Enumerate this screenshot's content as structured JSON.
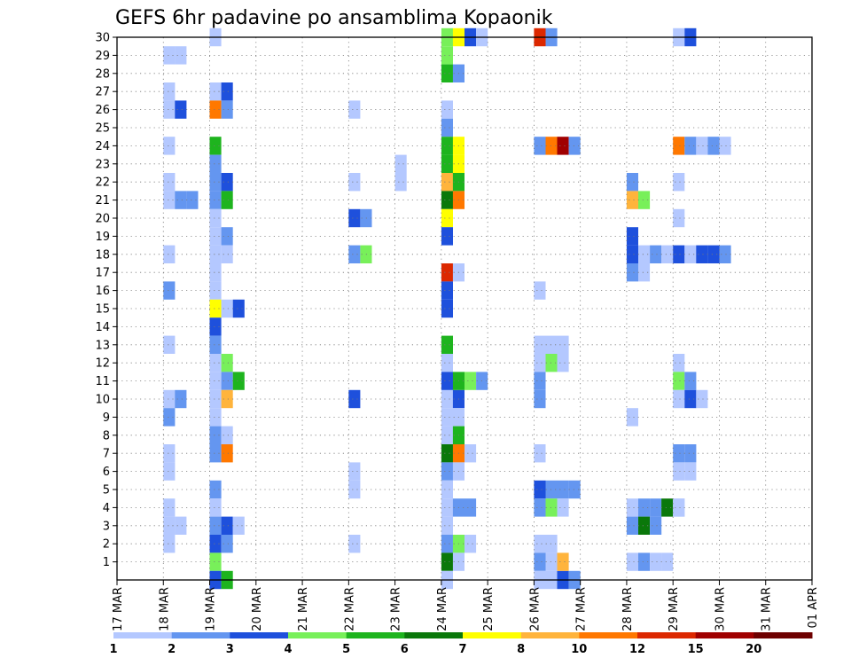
{
  "chart_data": {
    "type": "heatmap",
    "title": "GEFS 6hr padavine po ansamblima Kopaonik",
    "xlabel": "",
    "ylabel": "",
    "x_ticks": [
      "17 MAR",
      "18 MAR",
      "19 MAR",
      "20 MAR",
      "21 MAR",
      "22 MAR",
      "23 MAR",
      "24 MAR",
      "25 MAR",
      "26 MAR",
      "27 MAR",
      "28 MAR",
      "29 MAR",
      "30 MAR",
      "31 MAR",
      "01 APR"
    ],
    "y_ticks": [
      1,
      2,
      3,
      4,
      5,
      6,
      7,
      8,
      9,
      10,
      11,
      12,
      13,
      14,
      15,
      16,
      17,
      18,
      19,
      20,
      21,
      22,
      23,
      24,
      25,
      26,
      27,
      28,
      29,
      30
    ],
    "ylim": [
      0,
      30
    ],
    "grid": "dotted",
    "time_step_hours": 6,
    "levels": [
      1,
      2,
      3,
      4,
      5,
      6,
      7,
      8,
      10,
      12,
      15,
      20
    ],
    "colors": [
      "#b4c8ff",
      "#6496f0",
      "#1e50dc",
      "#78f05a",
      "#1eb41e",
      "#0a780a",
      "#ffff00",
      "#ffb43c",
      "#ff7800",
      "#dc2800",
      "#a00000",
      "#6e0000"
    ],
    "colorbar_labels": [
      "1",
      "2",
      "3",
      "4",
      "5",
      "6",
      "7",
      "8",
      "10",
      "12",
      "15",
      "20"
    ],
    "cells": [
      [
        1,
        29,
        1
      ],
      [
        1,
        29,
        1
      ],
      [
        1,
        27,
        1
      ],
      [
        1,
        26,
        1
      ],
      [
        1,
        26,
        3
      ],
      [
        1,
        24,
        1
      ],
      [
        1,
        22,
        1
      ],
      [
        1,
        21,
        1
      ],
      [
        1,
        21,
        2
      ],
      [
        1,
        21,
        2
      ],
      [
        1,
        18,
        1
      ],
      [
        1,
        16,
        2
      ],
      [
        1,
        13,
        1
      ],
      [
        1,
        10,
        1
      ],
      [
        1,
        10,
        2
      ],
      [
        1,
        9,
        2
      ],
      [
        1,
        7,
        1
      ],
      [
        1,
        6,
        1
      ],
      [
        1,
        4,
        1
      ],
      [
        1,
        3,
        1
      ],
      [
        1,
        3,
        1
      ],
      [
        1,
        2,
        1
      ],
      [
        2,
        30,
        1
      ],
      [
        2,
        27,
        1
      ],
      [
        2,
        27,
        3
      ],
      [
        2,
        26,
        9
      ],
      [
        2,
        26,
        2
      ],
      [
        2,
        24,
        5
      ],
      [
        2,
        23,
        2
      ],
      [
        2,
        22,
        2
      ],
      [
        2,
        22,
        3
      ],
      [
        2,
        21,
        2
      ],
      [
        2,
        21,
        5
      ],
      [
        2,
        20,
        1
      ],
      [
        2,
        19,
        1
      ],
      [
        2,
        19,
        2
      ],
      [
        2,
        18,
        1
      ],
      [
        2,
        18,
        1
      ],
      [
        2,
        17,
        1
      ],
      [
        2,
        16,
        1
      ],
      [
        2,
        15,
        7
      ],
      [
        2,
        15,
        1
      ],
      [
        2,
        15,
        3
      ],
      [
        2,
        14,
        3
      ],
      [
        2,
        13,
        2
      ],
      [
        2,
        12,
        1
      ],
      [
        2,
        12,
        4
      ],
      [
        2,
        11,
        1
      ],
      [
        2,
        11,
        2
      ],
      [
        2,
        11,
        5
      ],
      [
        2,
        10,
        1
      ],
      [
        2,
        10,
        8
      ],
      [
        2,
        9,
        1
      ],
      [
        2,
        8,
        2
      ],
      [
        2,
        8,
        1
      ],
      [
        2,
        7,
        2
      ],
      [
        2,
        7,
        9
      ],
      [
        2,
        5,
        2
      ],
      [
        2,
        4,
        1
      ],
      [
        2,
        3,
        2
      ],
      [
        2,
        3,
        3
      ],
      [
        2,
        3,
        1
      ],
      [
        2,
        2,
        3
      ],
      [
        2,
        2,
        2
      ],
      [
        2,
        1,
        4
      ],
      [
        2,
        0,
        3
      ],
      [
        2,
        0,
        5
      ],
      [
        5,
        26,
        1
      ],
      [
        5,
        22,
        1
      ],
      [
        5,
        20,
        3
      ],
      [
        5,
        20,
        2
      ],
      [
        5,
        18,
        2
      ],
      [
        5,
        18,
        4
      ],
      [
        5,
        10,
        3
      ],
      [
        5,
        6,
        1
      ],
      [
        5,
        5,
        1
      ],
      [
        5,
        2,
        1
      ],
      [
        6,
        23,
        1
      ],
      [
        6,
        22,
        1
      ],
      [
        7,
        29,
        4
      ],
      [
        7,
        28,
        5
      ],
      [
        7,
        28,
        2
      ],
      [
        7,
        23,
        5
      ],
      [
        7,
        23,
        7
      ],
      [
        7,
        17,
        10
      ],
      [
        7,
        17,
        1
      ],
      [
        7,
        16,
        3
      ],
      [
        7,
        15,
        3
      ],
      [
        7,
        10,
        1
      ],
      [
        7,
        10,
        3
      ],
      [
        7,
        9,
        1
      ],
      [
        7,
        9,
        1
      ],
      [
        7,
        8,
        1
      ],
      [
        7,
        7,
        6
      ],
      [
        7,
        7,
        9
      ],
      [
        7,
        6,
        2
      ],
      [
        7,
        4,
        1
      ],
      [
        7,
        2,
        2
      ],
      [
        7,
        2,
        4
      ],
      [
        7,
        1,
        6
      ],
      [
        7,
        26,
        1
      ],
      [
        7,
        25,
        2
      ],
      [
        7,
        24,
        5
      ],
      [
        7,
        24,
        7
      ],
      [
        7,
        22,
        8
      ],
      [
        7,
        22,
        5
      ],
      [
        7,
        21,
        6
      ],
      [
        7,
        21,
        9
      ],
      [
        7,
        20,
        7
      ],
      [
        7,
        19,
        3
      ],
      [
        7,
        13,
        5
      ],
      [
        7,
        12,
        1
      ],
      [
        7,
        11,
        3
      ],
      [
        7,
        11,
        5
      ],
      [
        7,
        11,
        4
      ],
      [
        7,
        11,
        2
      ],
      [
        7,
        8,
        5
      ],
      [
        7,
        7,
        1
      ],
      [
        7,
        6,
        1
      ],
      [
        7,
        5,
        1
      ],
      [
        7,
        4,
        2
      ],
      [
        7,
        4,
        2
      ],
      [
        7,
        3,
        1
      ],
      [
        7,
        30,
        4
      ],
      [
        7,
        30,
        7
      ],
      [
        7,
        30,
        3
      ],
      [
        7,
        30,
        1
      ],
      [
        7,
        1,
        1
      ],
      [
        7,
        2,
        1
      ],
      [
        7,
        0,
        1
      ],
      [
        9,
        24,
        2
      ],
      [
        9,
        24,
        9
      ],
      [
        9,
        24,
        11
      ],
      [
        9,
        24,
        2
      ],
      [
        9,
        16,
        1
      ],
      [
        9,
        13,
        1
      ],
      [
        9,
        13,
        1
      ],
      [
        9,
        13,
        1
      ],
      [
        9,
        12,
        1
      ],
      [
        9,
        12,
        4
      ],
      [
        9,
        12,
        1
      ],
      [
        9,
        11,
        2
      ],
      [
        9,
        10,
        2
      ],
      [
        9,
        5,
        3
      ],
      [
        9,
        5,
        2
      ],
      [
        9,
        5,
        2
      ],
      [
        9,
        5,
        2
      ],
      [
        9,
        4,
        2
      ],
      [
        9,
        4,
        4
      ],
      [
        9,
        4,
        1
      ],
      [
        9,
        2,
        1
      ],
      [
        9,
        2,
        1
      ],
      [
        9,
        1,
        2
      ],
      [
        9,
        0,
        1
      ],
      [
        9,
        0,
        1
      ],
      [
        9,
        30,
        10
      ],
      [
        9,
        30,
        2
      ],
      [
        9,
        7,
        1
      ],
      [
        9,
        0,
        3
      ],
      [
        9,
        0,
        2
      ],
      [
        9,
        1,
        1
      ],
      [
        9,
        1,
        8
      ],
      [
        11,
        22,
        2
      ],
      [
        11,
        19,
        3
      ],
      [
        11,
        18,
        3
      ],
      [
        11,
        18,
        1
      ],
      [
        11,
        18,
        2
      ],
      [
        11,
        18,
        1
      ],
      [
        11,
        17,
        2
      ],
      [
        11,
        17,
        1
      ],
      [
        11,
        9,
        1
      ],
      [
        11,
        4,
        1
      ],
      [
        11,
        4,
        2
      ],
      [
        11,
        4,
        2
      ],
      [
        11,
        4,
        6
      ],
      [
        11,
        4,
        1
      ],
      [
        11,
        3,
        2
      ],
      [
        11,
        3,
        6
      ],
      [
        11,
        3,
        2
      ],
      [
        11,
        1,
        1
      ],
      [
        11,
        1,
        2
      ],
      [
        11,
        1,
        1
      ],
      [
        11,
        1,
        1
      ],
      [
        11,
        21,
        8
      ],
      [
        11,
        21,
        4
      ],
      [
        12,
        30,
        1
      ],
      [
        12,
        30,
        3
      ],
      [
        12,
        24,
        9
      ],
      [
        12,
        24,
        2
      ],
      [
        12,
        24,
        1
      ],
      [
        12,
        24,
        2
      ],
      [
        12,
        24,
        1
      ],
      [
        12,
        22,
        1
      ],
      [
        12,
        20,
        1
      ],
      [
        12,
        18,
        3
      ],
      [
        12,
        18,
        1
      ],
      [
        12,
        18,
        3
      ],
      [
        12,
        18,
        3
      ],
      [
        12,
        18,
        2
      ],
      [
        12,
        12,
        1
      ],
      [
        12,
        11,
        4
      ],
      [
        12,
        11,
        2
      ],
      [
        12,
        10,
        1
      ],
      [
        12,
        10,
        3
      ],
      [
        12,
        10,
        1
      ],
      [
        12,
        7,
        2
      ],
      [
        12,
        7,
        2
      ],
      [
        12,
        6,
        1
      ],
      [
        12,
        6,
        1
      ],
      [
        12,
        4,
        1
      ]
    ]
  },
  "colorbar": {
    "labels": [
      "1",
      "2",
      "3",
      "4",
      "5",
      "6",
      "7",
      "8",
      "10",
      "12",
      "15",
      "20"
    ]
  }
}
